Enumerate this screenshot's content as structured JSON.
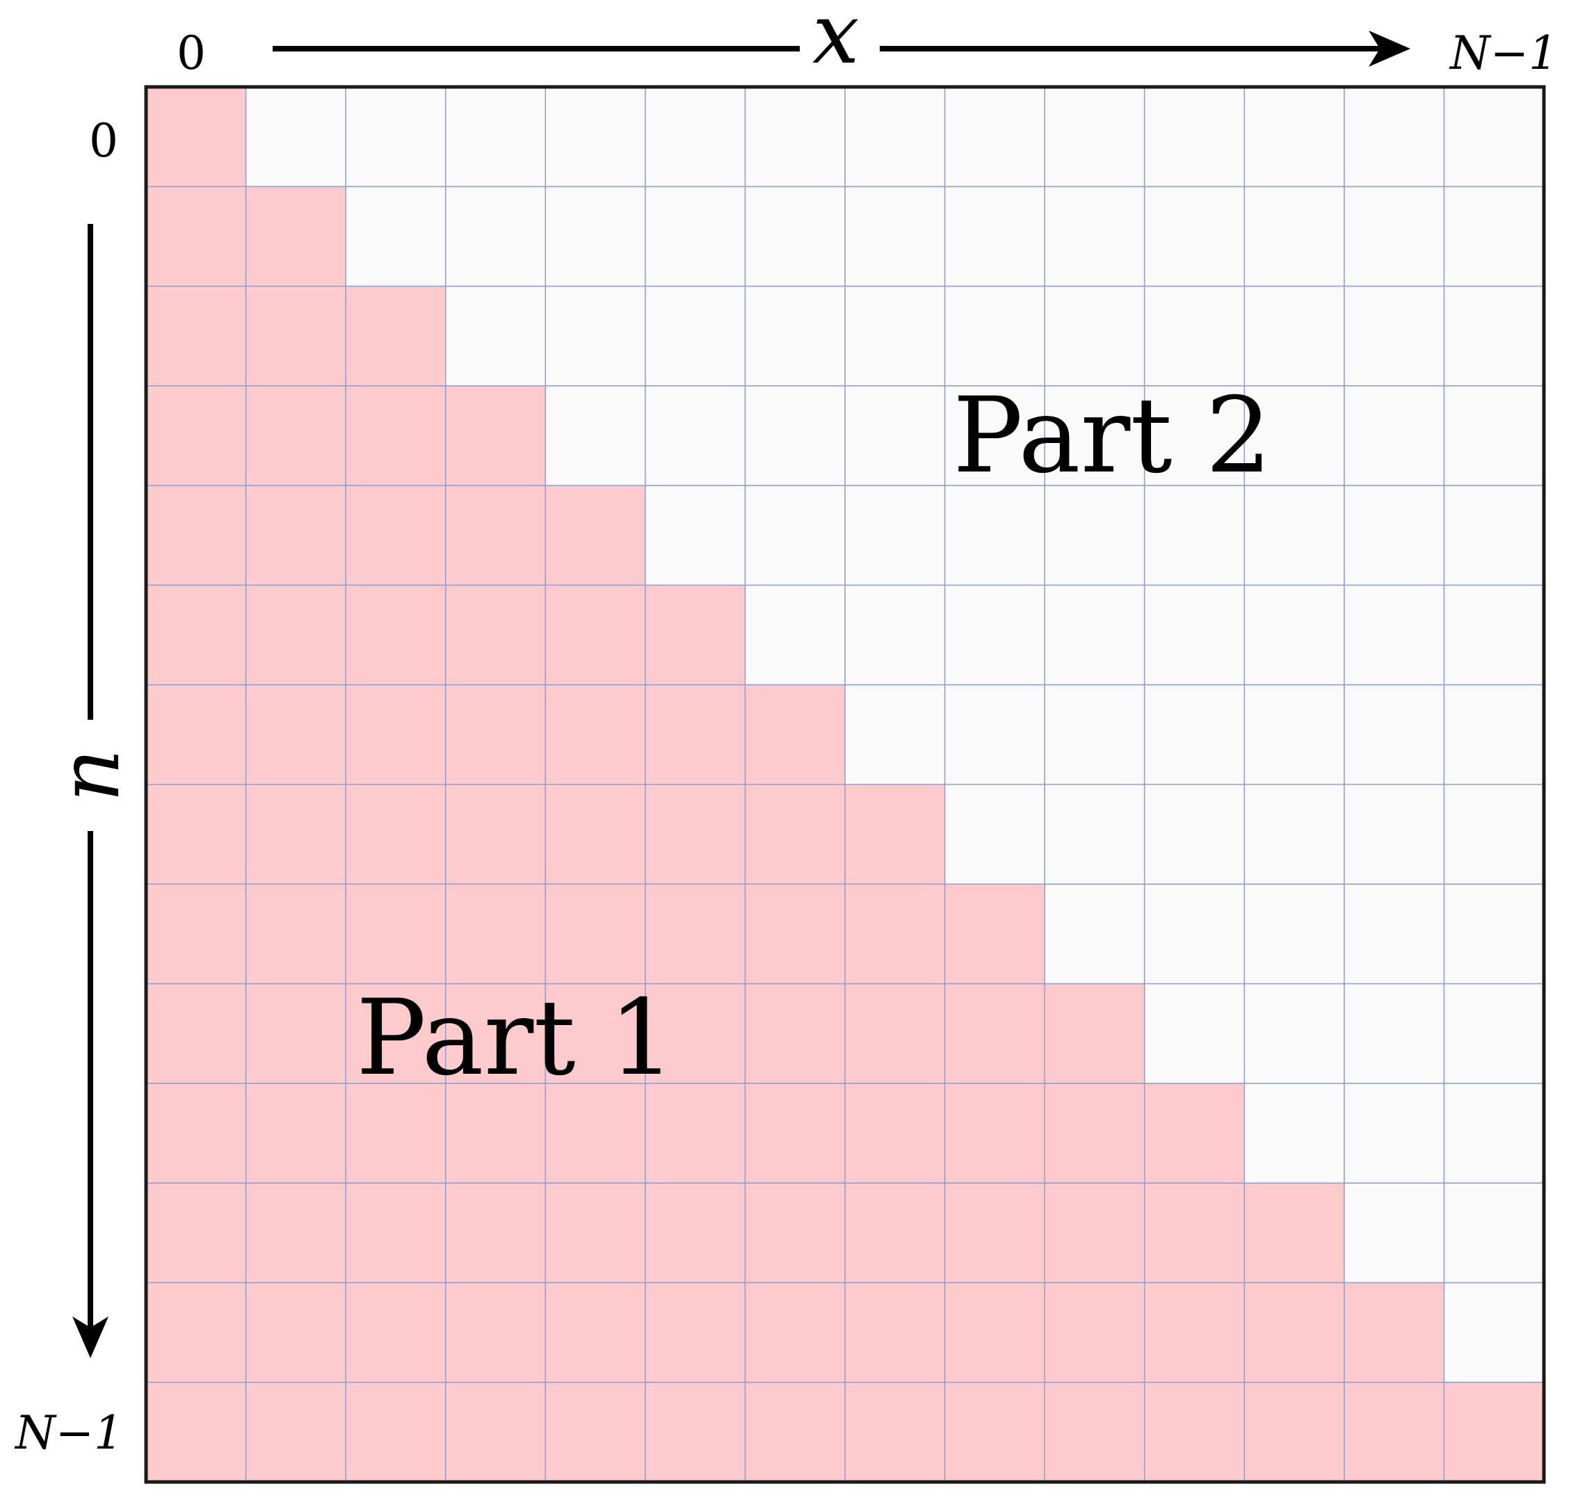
{
  "grid": {
    "rows": 14,
    "cols": 14,
    "part1_rule": "column <= row",
    "part1_color": "#fdcbcb",
    "part2_color": "#fafafa",
    "grid_line_color": "#8fa0d8",
    "border_color": "#1a1a1a"
  },
  "axes": {
    "x_var": "x",
    "n_var": "n",
    "x_start": "0",
    "x_end": "N−1",
    "n_start": "0",
    "n_end": "N−1"
  },
  "regions": {
    "part1": "Part 1",
    "part2": "Part 2"
  }
}
